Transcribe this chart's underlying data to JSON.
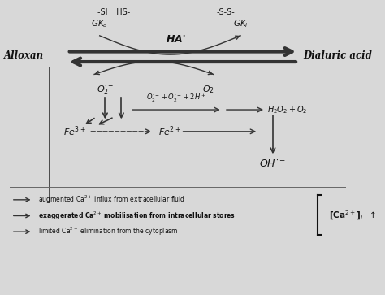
{
  "bg_color": "#d8d8d8",
  "text_color": "#111111",
  "arrow_color": "#333333",
  "sh_label": "-SH  HS-",
  "ss_label": "-S-S-",
  "gka_label": "GK_a",
  "gki_label": "GK_i",
  "ha_label": "HA·",
  "alloxan_label": "Alloxan",
  "dialuric_label": "Dialuric acid",
  "o2rad_label": "O_2^{\\cdot -}",
  "o2_label": "O_2",
  "reaction_left": "O_2^{\\cdot -} + O_2^{\\cdot -} + 2H^+",
  "h2o2_label": "H_2O_2 + O_2",
  "fe3_label": "Fe^{3+}",
  "fe2_label": "Fe^{2+}",
  "oh_label": "OH^{\\cdot -}",
  "ca_line1": "augmented Ca$^{2+}$ influx from extracellular fluid",
  "ca_line2": "exaggerated Ca$^{2+}$ mobilisation from intracellular stores",
  "ca_line3": "limited Ca$^{2+}$ elimination from the cytoplasm",
  "ca_result": "[Ca$^{2+}$]$_i$  $\\uparrow$"
}
